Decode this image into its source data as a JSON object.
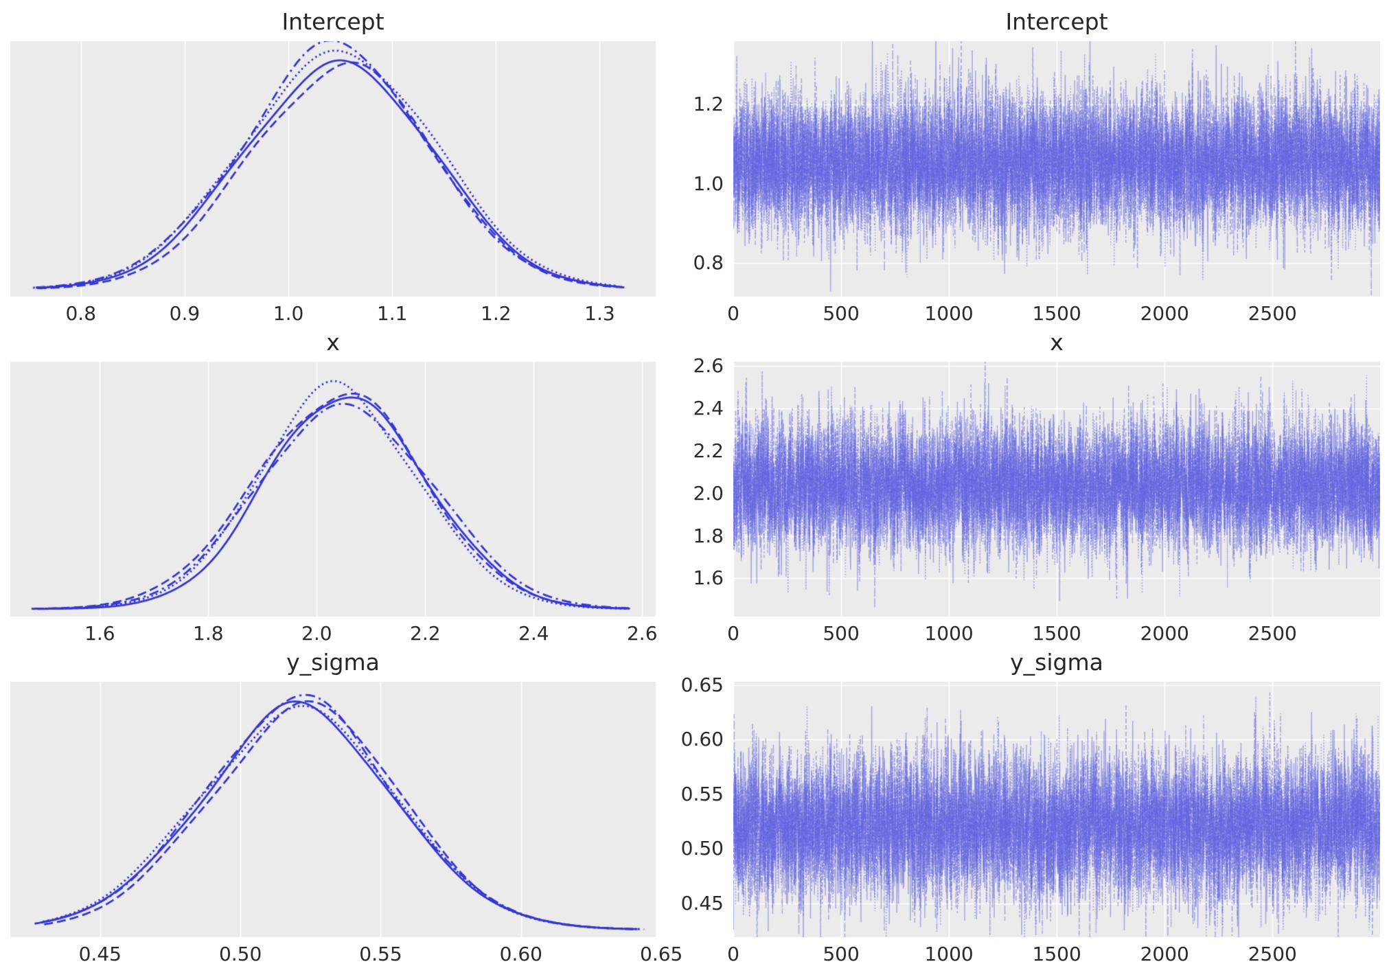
{
  "figure": {
    "kind": "arviz-style posterior trace plot, 3 parameters x (density | trace) grid",
    "background_color": "#ffffff",
    "panel_background_color": "#ebebeb",
    "grid_color": "#ffffff",
    "text_color": "#262626",
    "kde_line_color": "#3636d2",
    "trace_line_color_rgb": [
      90,
      92,
      224
    ],
    "trace_line_alpha": 0.5,
    "n_chains": 4,
    "chain_line_styles": [
      "solid",
      "dashed",
      "dotted",
      "dashdot"
    ],
    "legend": "none"
  },
  "chart_data": [
    {
      "id": "intercept-kde",
      "type": "line",
      "subtype": "kde",
      "title": "Intercept",
      "xlabel": "",
      "ylabel": "",
      "grid": "vertical",
      "xlim": [
        0.732,
        1.354
      ],
      "x_tick_values": [
        0.8,
        0.9,
        1.0,
        1.1,
        1.2,
        1.3
      ],
      "x_tick_labels": [
        "0.8",
        "0.9",
        "1.0",
        "1.1",
        "1.2",
        "1.3"
      ],
      "y_axis_visible": false,
      "stats": {
        "mean": 1.046,
        "sd": 0.0875,
        "min": 0.755,
        "max": 1.322
      },
      "peak_fraction": 0.95
    },
    {
      "id": "intercept-trace",
      "type": "line",
      "subtype": "trace",
      "title": "Intercept",
      "xlabel": "",
      "ylabel": "",
      "grid": "both",
      "n_draws": 3000,
      "xlim": [
        0,
        2999
      ],
      "x_tick_values": [
        0,
        500,
        1000,
        1500,
        2000,
        2500
      ],
      "x_tick_labels": [
        "0",
        "500",
        "1000",
        "1500",
        "2000",
        "2500"
      ],
      "ylim": [
        0.715,
        1.36
      ],
      "y_tick_values": [
        0.8,
        1.0,
        1.2
      ],
      "y_tick_labels": [
        "0.8",
        "1.0",
        "1.2"
      ],
      "stats": {
        "mean": 1.045,
        "sd": 0.088,
        "min": 0.75,
        "max": 1.33
      }
    },
    {
      "id": "x-kde",
      "type": "line",
      "subtype": "kde",
      "title": "x",
      "xlabel": "",
      "ylabel": "",
      "grid": "vertical",
      "xlim": [
        1.435,
        2.625
      ],
      "x_tick_values": [
        1.6,
        1.8,
        2.0,
        2.2,
        2.4,
        2.6
      ],
      "x_tick_labels": [
        "1.6",
        "1.8",
        "2.0",
        "2.2",
        "2.4",
        "2.6"
      ],
      "y_axis_visible": false,
      "stats": {
        "mean": 2.049,
        "sd": 0.152,
        "min": 1.48,
        "max": 2.57
      },
      "peak_fraction": 0.88
    },
    {
      "id": "x-trace",
      "type": "line",
      "subtype": "trace",
      "title": "x",
      "xlabel": "",
      "ylabel": "",
      "grid": "both",
      "n_draws": 3000,
      "xlim": [
        0,
        2999
      ],
      "x_tick_values": [
        0,
        500,
        1000,
        1500,
        2000,
        2500
      ],
      "x_tick_labels": [
        "0",
        "500",
        "1000",
        "1500",
        "2000",
        "2500"
      ],
      "ylim": [
        1.42,
        2.62
      ],
      "y_tick_values": [
        1.6,
        1.8,
        2.0,
        2.2,
        2.4,
        2.6
      ],
      "y_tick_labels": [
        "1.6",
        "1.8",
        "2.0",
        "2.2",
        "2.4",
        "2.6"
      ],
      "stats": {
        "mean": 2.04,
        "sd": 0.153,
        "min": 1.45,
        "max": 2.58
      }
    },
    {
      "id": "y_sigma-kde",
      "type": "line",
      "subtype": "kde",
      "title": "y_sigma",
      "xlabel": "",
      "ylabel": "",
      "grid": "vertical",
      "xlim": [
        0.418,
        0.648
      ],
      "x_tick_values": [
        0.45,
        0.5,
        0.55,
        0.6,
        0.65
      ],
      "x_tick_labels": [
        "0.45",
        "0.50",
        "0.55",
        "0.60",
        "0.65"
      ],
      "y_axis_visible": false,
      "stats": {
        "mean": 0.521,
        "sd": 0.0335,
        "min": 0.428,
        "max": 0.642
      },
      "peak_fraction": 0.9
    },
    {
      "id": "y_sigma-trace",
      "type": "line",
      "subtype": "trace",
      "title": "y_sigma",
      "xlabel": "",
      "ylabel": "",
      "grid": "both",
      "n_draws": 3000,
      "xlim": [
        0,
        2999
      ],
      "x_tick_values": [
        0,
        500,
        1000,
        1500,
        2000,
        2500
      ],
      "x_tick_labels": [
        "0",
        "500",
        "1000",
        "1500",
        "2000",
        "2500"
      ],
      "ylim": [
        0.419,
        0.653
      ],
      "y_tick_values": [
        0.45,
        0.5,
        0.55,
        0.6,
        0.65
      ],
      "y_tick_labels": [
        "0.45",
        "0.50",
        "0.55",
        "0.60",
        "0.65"
      ],
      "stats": {
        "mean": 0.524,
        "sd": 0.033,
        "min": 0.425,
        "max": 0.645
      }
    }
  ]
}
